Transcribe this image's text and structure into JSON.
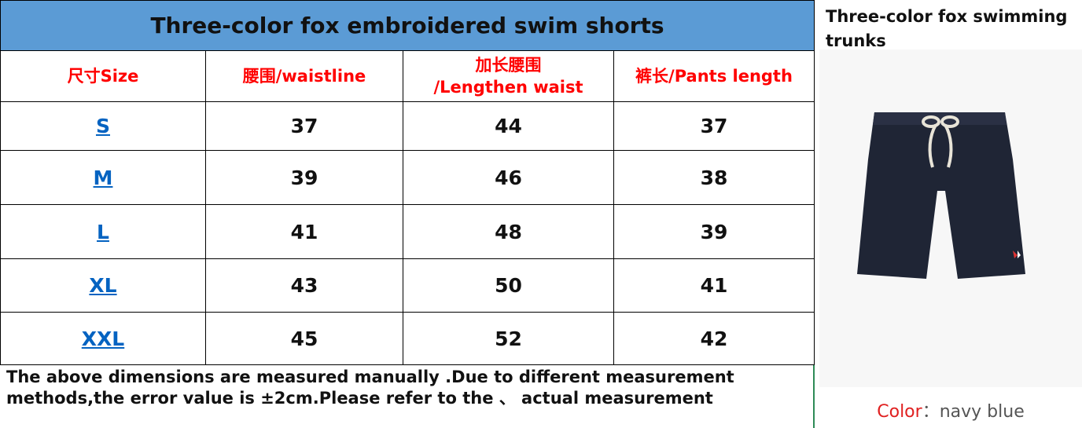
{
  "table": {
    "title": "Three-color fox embroidered swim shorts",
    "headers": [
      "尺寸Size",
      "腰围/waistline",
      "加长腰围\n/Lengthen waist",
      "裤长/Pants length"
    ],
    "rows": [
      [
        "S",
        37,
        44,
        37
      ],
      [
        "M",
        39,
        46,
        38
      ],
      [
        "L",
        41,
        48,
        39
      ],
      [
        "XL",
        43,
        50,
        41
      ],
      [
        "XXL",
        45,
        52,
        42
      ]
    ],
    "note": "The above dimensions are measured manually .Due to different measurement methods,the error value is ±2cm.Please refer to the 、 actual measurement"
  },
  "product": {
    "title": "Three-color fox swimming trunks",
    "color_label": "Color",
    "color_separator": "：",
    "color_value": "navy  blue"
  }
}
